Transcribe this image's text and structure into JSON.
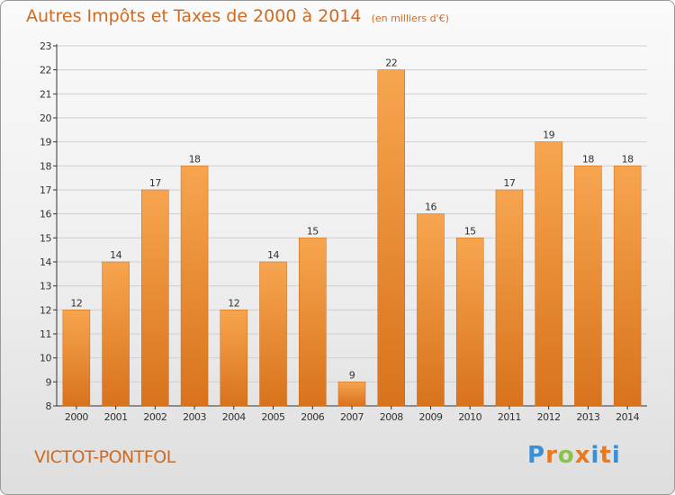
{
  "title": "Autres Impôts et Taxes de 2000 à 2014",
  "unit": "(en milliers d'€)",
  "commune": "VICTOT-PONTFOL",
  "logo": {
    "text": "Proxiti",
    "letter_colors": [
      "#3a8fd6",
      "#e8791f",
      "#8bc34a",
      "#e8791f",
      "#3a8fd6",
      "#e8791f",
      "#3a8fd6"
    ]
  },
  "colors": {
    "title": "#d2691e",
    "bar_light": "#f7a54f",
    "bar_dark": "#d8731c",
    "axis": "#333333",
    "grid": "#cfcfcf"
  },
  "chart_data": {
    "type": "bar",
    "title": "Autres Impôts et Taxes de 2000 à 2014",
    "subtitle": "(en milliers d'€)",
    "categories": [
      "2000",
      "2001",
      "2002",
      "2003",
      "2004",
      "2005",
      "2006",
      "2007",
      "2008",
      "2009",
      "2010",
      "2011",
      "2012",
      "2013",
      "2014"
    ],
    "values": [
      12,
      14,
      17,
      18,
      12,
      14,
      15,
      9,
      22,
      16,
      15,
      17,
      19,
      18,
      18
    ],
    "ylim": [
      8,
      23
    ],
    "yticks": [
      8,
      9,
      10,
      11,
      12,
      13,
      14,
      15,
      16,
      17,
      18,
      19,
      20,
      21,
      22,
      23
    ],
    "grid": true,
    "legend": "none",
    "data_labels": true
  }
}
